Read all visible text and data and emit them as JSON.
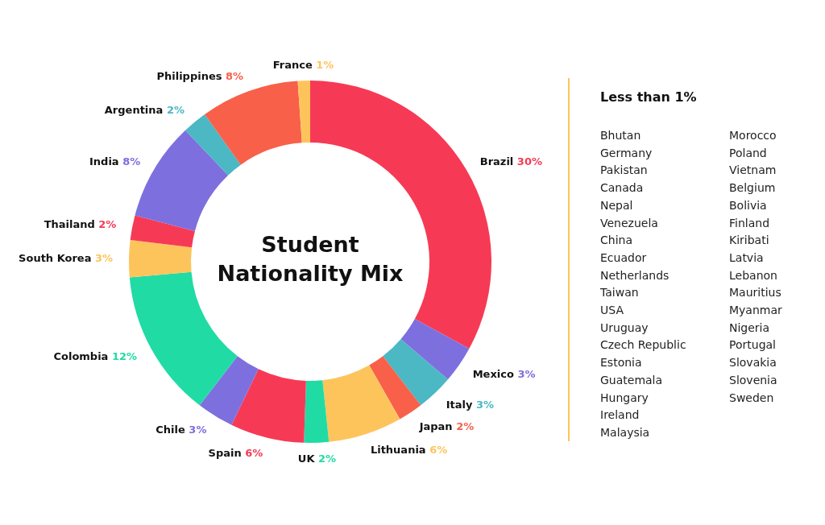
{
  "chart_data": [
    {
      "type": "donut",
      "title": "Student Nationality Mix",
      "categories": [
        "Brazil",
        "Mexico",
        "Italy",
        "Japan",
        "Lithuania",
        "UK",
        "Spain",
        "Chile",
        "Colombia",
        "South Korea",
        "Thailand",
        "India",
        "Argentina",
        "Philippines",
        "France"
      ],
      "values": [
        30,
        3,
        3,
        2,
        6,
        2,
        6,
        3,
        12,
        3,
        2,
        8,
        2,
        8,
        1
      ],
      "value_labels": [
        "30%",
        "3%",
        "3%",
        "2%",
        "6%",
        "2%",
        "6%",
        "3%",
        "12%",
        "3%",
        "2%",
        "8%",
        "2%",
        "8%",
        "1%"
      ],
      "colors": [
        "#f63a55",
        "#7e6fdf",
        "#4bb8c4",
        "#f8604a",
        "#fec45c",
        "#21dba4",
        "#f63a55",
        "#7e6fdf",
        "#21dba4",
        "#fec45c",
        "#f63a55",
        "#7e6fdf",
        "#4bb8c4",
        "#f8604a",
        "#fec45c"
      ]
    },
    {
      "type": "other",
      "title": "Less than 1%",
      "annotations": [
        "Bhutan",
        "Germany",
        "Pakistan",
        "Canada",
        "Nepal",
        "Venezuela",
        "China",
        "Ecuador",
        "Netherlands",
        "Taiwan",
        "USA",
        "Uruguay",
        "Czech Republic",
        "Estonia",
        "Guatemala",
        "Hungary",
        "Ireland",
        "Malaysia",
        "Morocco",
        "Poland",
        "Vietnam",
        "Belgium",
        "Bolivia",
        "Finland",
        "Kiribati",
        "Latvia",
        "Lebanon",
        "Mauritius",
        "Myanmar",
        "Nigeria",
        "Portugal",
        "Slovakia",
        "Slovenia",
        "Sweden"
      ]
    }
  ]
}
